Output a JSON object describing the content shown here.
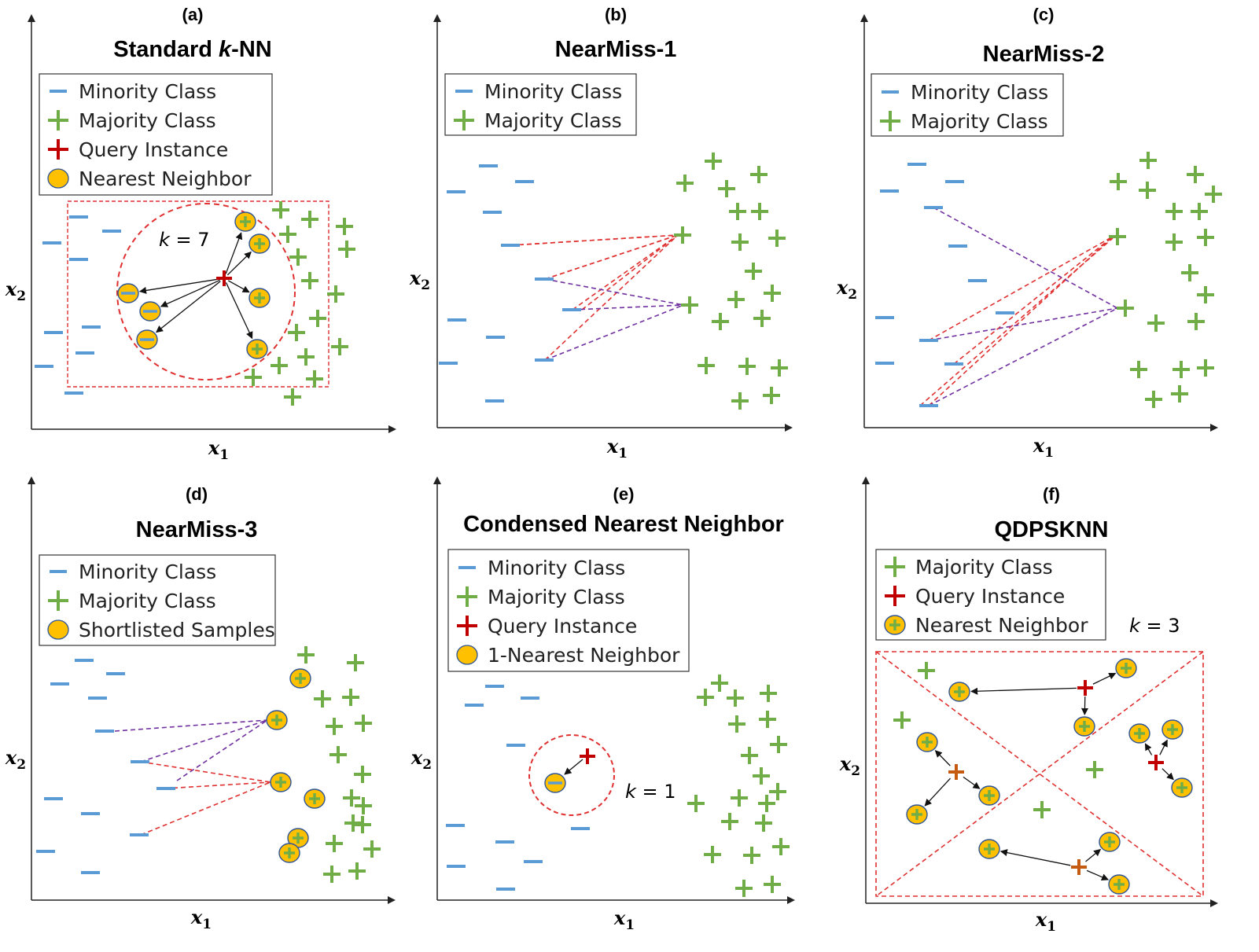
{
  "figure": {
    "colors": {
      "minority": "#5b9bd5",
      "majority": "#70ad47",
      "query": "#c00000",
      "query_alt": "#c55a11",
      "neighbor_fill": "#ffc000",
      "neighbor_stroke": "#2f5597",
      "red_dash": "#e03030",
      "purple_dash": "#7030a0",
      "arrow": "#111111"
    },
    "axes": {
      "x_label": "x",
      "x_sub": "1",
      "y_label": "x",
      "y_sub": "2"
    },
    "panels": [
      {
        "id": "a",
        "letter": "(a)",
        "title_parts": [
          "Standard ",
          "k",
          "-NN"
        ],
        "legend": [
          "Minority Class",
          "Majority Class",
          "Query Instance",
          "Nearest Neighbor"
        ],
        "legend_icons": [
          "minority-icon",
          "majority-icon",
          "query-icon",
          "neighbor-icon"
        ],
        "annotation": "k = 7"
      },
      {
        "id": "b",
        "letter": "(b)",
        "title_parts": [
          "NearMiss-1"
        ],
        "legend": [
          "Minority Class",
          "Majority Class"
        ],
        "legend_icons": [
          "minority-icon",
          "majority-icon"
        ],
        "annotation": ""
      },
      {
        "id": "c",
        "letter": "(c)",
        "title_parts": [
          "NearMiss-2"
        ],
        "legend": [
          "Minority Class",
          "Majority Class"
        ],
        "legend_icons": [
          "minority-icon",
          "majority-icon"
        ],
        "annotation": ""
      },
      {
        "id": "d",
        "letter": "(d)",
        "title_parts": [
          "NearMiss-3"
        ],
        "legend": [
          "Minority Class",
          "Majority Class",
          "Shortlisted Samples"
        ],
        "legend_icons": [
          "minority-icon",
          "majority-icon",
          "neighbor-icon"
        ],
        "annotation": ""
      },
      {
        "id": "e",
        "letter": "(e)",
        "title_parts": [
          "Condensed Nearest Neighbor"
        ],
        "legend": [
          "Minority Class",
          "Majority Class",
          "Query Instance",
          "1-Nearest Neighbor"
        ],
        "legend_icons": [
          "minority-icon",
          "majority-icon",
          "query-icon",
          "neighbor-icon"
        ],
        "annotation": "k = 1"
      },
      {
        "id": "f",
        "letter": "(f)",
        "title_parts": [
          "QDPSKNN"
        ],
        "legend": [
          "Majority Class",
          "Query Instance",
          "Nearest Neighbor"
        ],
        "legend_icons": [
          "majority-icon",
          "query-icon",
          "majority-neighbor-icon"
        ],
        "annotation": "k = 3"
      }
    ]
  }
}
